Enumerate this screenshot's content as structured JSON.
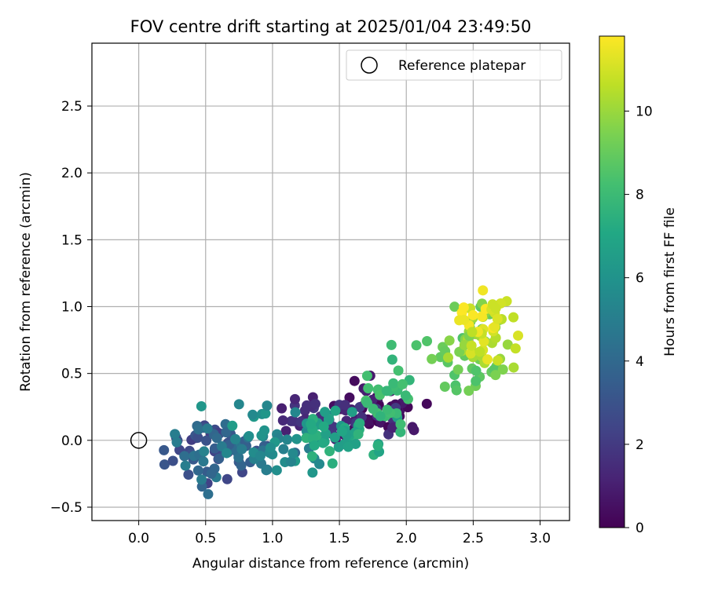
{
  "chart_data": {
    "type": "scatter",
    "title": "FOV centre drift starting at 2025/01/04 23:49:50",
    "xlabel": "Angular distance from reference (arcmin)",
    "ylabel": "Rotation from reference (arcmin)",
    "xlim": [
      -0.35,
      3.22
    ],
    "ylim": [
      -0.6,
      2.97
    ],
    "xticks": [
      0.0,
      0.5,
      1.0,
      1.5,
      2.0,
      2.5,
      3.0
    ],
    "xtick_labels": [
      "0.0",
      "0.5",
      "1.0",
      "1.5",
      "2.0",
      "2.5",
      "3.0"
    ],
    "yticks": [
      -0.5,
      0.0,
      0.5,
      1.0,
      1.5,
      2.0,
      2.5
    ],
    "ytick_labels": [
      "−0.5",
      "0.0",
      "0.5",
      "1.0",
      "1.5",
      "2.0",
      "2.5"
    ],
    "grid": true,
    "colormap": "viridis",
    "legend": {
      "position": "top-right",
      "entries": [
        {
          "label": "Reference platepar",
          "marker": "open-circle"
        }
      ]
    },
    "reference_point": {
      "x": 0.0,
      "y": 0.0
    },
    "colorbar": {
      "label": "Hours from first FF file",
      "range": [
        0,
        11.8
      ],
      "ticks": [
        0,
        2,
        4,
        6,
        8,
        10
      ],
      "tick_labels": [
        "0",
        "2",
        "4",
        "6",
        "8",
        "10"
      ]
    },
    "clusters": [
      {
        "hours": [
          0.0,
          0.9
        ],
        "center": [
          1.85,
          0.22
        ],
        "spread": [
          0.22,
          0.13
        ],
        "count": 40
      },
      {
        "hours": [
          0.9,
          2.0
        ],
        "center": [
          1.45,
          0.15
        ],
        "spread": [
          0.28,
          0.13
        ],
        "count": 45
      },
      {
        "hours": [
          2.0,
          3.3
        ],
        "center": [
          0.55,
          -0.08
        ],
        "spread": [
          0.22,
          0.13
        ],
        "count": 40
      },
      {
        "hours": [
          3.3,
          5.0
        ],
        "center": [
          0.65,
          -0.1
        ],
        "spread": [
          0.22,
          0.14
        ],
        "count": 45
      },
      {
        "hours": [
          5.0,
          6.5
        ],
        "center": [
          1.05,
          0.0
        ],
        "spread": [
          0.32,
          0.14
        ],
        "count": 45
      },
      {
        "hours": [
          6.5,
          7.6
        ],
        "center": [
          1.55,
          0.02
        ],
        "spread": [
          0.2,
          0.12
        ],
        "count": 45
      },
      {
        "hours": [
          7.6,
          8.4
        ],
        "center": [
          1.85,
          0.32
        ],
        "spread": [
          0.14,
          0.18
        ],
        "count": 30
      },
      {
        "hours": [
          8.4,
          9.4
        ],
        "center": [
          2.45,
          0.65
        ],
        "spread": [
          0.18,
          0.2
        ],
        "count": 35
      },
      {
        "hours": [
          9.4,
          10.6
        ],
        "center": [
          2.55,
          0.72
        ],
        "spread": [
          0.14,
          0.17
        ],
        "count": 30
      },
      {
        "hours": [
          10.6,
          11.8
        ],
        "center": [
          2.58,
          0.85
        ],
        "spread": [
          0.13,
          0.16
        ],
        "count": 35
      }
    ]
  }
}
